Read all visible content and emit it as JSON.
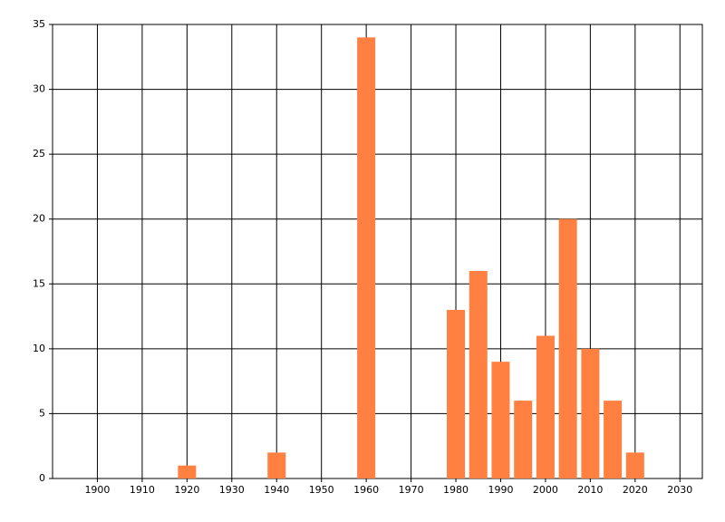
{
  "chart_data": {
    "type": "bar",
    "x": [
      1920,
      1940,
      1960,
      1980,
      1985,
      1990,
      1995,
      2000,
      2005,
      2010,
      2015,
      2020
    ],
    "values": [
      1,
      2,
      34,
      13,
      16,
      9,
      6,
      11,
      20,
      10,
      6,
      2
    ],
    "color": "#ff8040",
    "xlim": [
      1890,
      2035
    ],
    "xticks": [
      1900,
      1910,
      1920,
      1930,
      1940,
      1950,
      1960,
      1970,
      1980,
      1990,
      2000,
      2010,
      2020,
      2030
    ],
    "ylim": [
      0,
      35
    ],
    "yticks": [
      0,
      5,
      10,
      15,
      20,
      25,
      30,
      35
    ],
    "grid": true
  }
}
